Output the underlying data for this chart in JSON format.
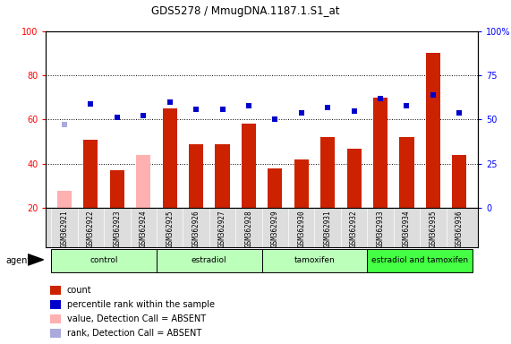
{
  "title": "GDS5278 / MmugDNA.1187.1.S1_at",
  "samples": [
    "GSM362921",
    "GSM362922",
    "GSM362923",
    "GSM362924",
    "GSM362925",
    "GSM362926",
    "GSM362927",
    "GSM362928",
    "GSM362929",
    "GSM362930",
    "GSM362931",
    "GSM362932",
    "GSM362933",
    "GSM362934",
    "GSM362935",
    "GSM362936"
  ],
  "bar_values": [
    28,
    51,
    37,
    44,
    65,
    49,
    49,
    58,
    38,
    42,
    52,
    47,
    70,
    52,
    90,
    44
  ],
  "bar_absent": [
    true,
    false,
    false,
    true,
    false,
    false,
    false,
    false,
    false,
    false,
    false,
    false,
    false,
    false,
    false,
    false
  ],
  "rank_values": [
    47,
    59,
    51,
    52,
    60,
    56,
    56,
    58,
    50,
    54,
    57,
    55,
    62,
    58,
    64,
    54
  ],
  "rank_absent": [
    true,
    false,
    false,
    false,
    false,
    false,
    false,
    false,
    false,
    false,
    false,
    false,
    false,
    false,
    false,
    false
  ],
  "bar_color_normal": "#cc2200",
  "bar_color_absent": "#ffb0b0",
  "rank_color_normal": "#0000cc",
  "rank_color_absent": "#aaaadd",
  "ylim_left": [
    20,
    100
  ],
  "ylim_right": [
    0,
    100
  ],
  "yticks_left": [
    20,
    40,
    60,
    80,
    100
  ],
  "yticks_right": [
    0,
    25,
    50,
    75,
    100
  ],
  "yticklabels_right": [
    "0",
    "25",
    "50",
    "75",
    "100%"
  ],
  "groups": [
    {
      "label": "control",
      "start": 0,
      "end": 3,
      "color": "#bbffbb"
    },
    {
      "label": "estradiol",
      "start": 4,
      "end": 7,
      "color": "#bbffbb"
    },
    {
      "label": "tamoxifen",
      "start": 8,
      "end": 11,
      "color": "#bbffbb"
    },
    {
      "label": "estradiol and tamoxifen",
      "start": 12,
      "end": 15,
      "color": "#44ff44"
    }
  ],
  "agent_label": "agent",
  "bar_width": 0.55,
  "rank_marker_size": 25
}
